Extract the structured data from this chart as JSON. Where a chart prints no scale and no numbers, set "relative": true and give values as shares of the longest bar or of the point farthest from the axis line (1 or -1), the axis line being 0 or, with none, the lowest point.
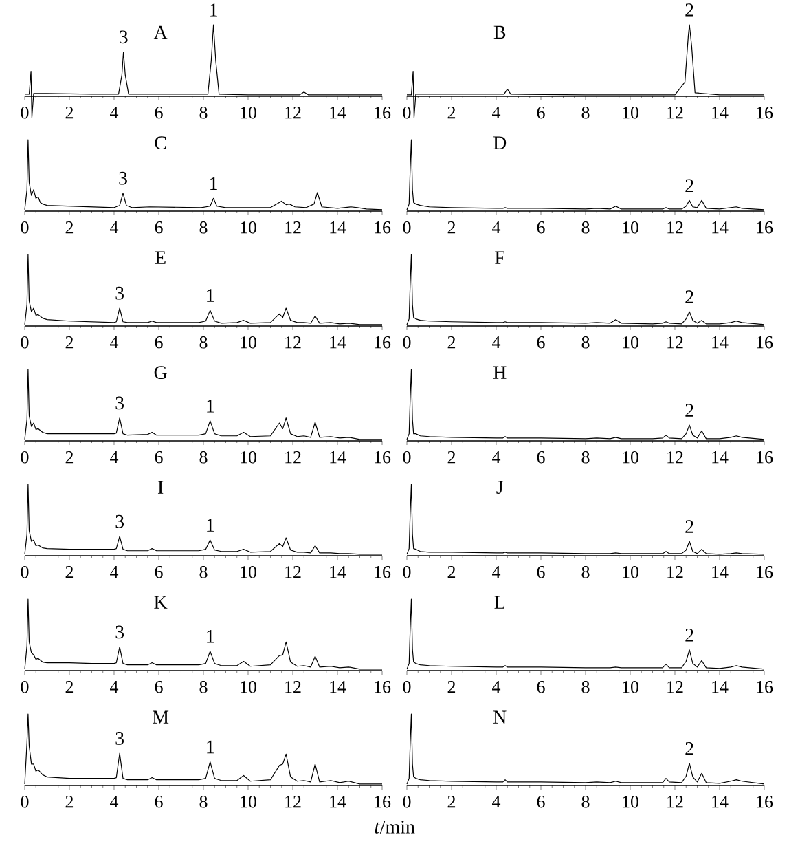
{
  "chart_data": [
    {
      "type": "line",
      "relative": true,
      "title": "A",
      "color": "#000000",
      "xlim": [
        0,
        16
      ],
      "xticks": [
        0,
        2,
        4,
        6,
        8,
        10,
        12,
        14,
        16
      ],
      "x": [
        0,
        0.2,
        0.28,
        0.32,
        0.4,
        1,
        3,
        4.2,
        4.35,
        4.42,
        4.5,
        4.65,
        6,
        8.2,
        8.35,
        8.45,
        8.55,
        8.7,
        10,
        12.3,
        12.5,
        12.7,
        14,
        16
      ],
      "values": [
        0.03,
        0.03,
        0.35,
        -0.3,
        0.04,
        0.04,
        0.03,
        0.03,
        0.3,
        0.62,
        0.3,
        0.03,
        0.03,
        0.03,
        0.5,
        1,
        0.5,
        0.03,
        0.02,
        0.02,
        0.06,
        0.02,
        0.02,
        0.02
      ],
      "annotations": [
        {
          "text": "3",
          "x": 4.42,
          "y": 0.62
        },
        {
          "text": "1",
          "x": 8.45,
          "y": 1
        }
      ]
    },
    {
      "type": "line",
      "relative": true,
      "title": "B",
      "color": "#000000",
      "xlim": [
        0,
        16
      ],
      "xticks": [
        0,
        2,
        4,
        6,
        8,
        10,
        12,
        14,
        16
      ],
      "x": [
        0,
        0.2,
        0.28,
        0.32,
        0.4,
        3,
        4.35,
        4.5,
        4.65,
        8,
        12,
        12.45,
        12.6,
        12.65,
        12.75,
        12.9,
        14,
        16
      ],
      "values": [
        0.02,
        0.02,
        0.35,
        -0.3,
        0.03,
        0.03,
        0.03,
        0.1,
        0.03,
        0.02,
        0.02,
        0.2,
        0.85,
        1,
        0.7,
        0.05,
        0.02,
        0.02
      ],
      "annotations": [
        {
          "text": "2",
          "x": 12.65,
          "y": 1
        }
      ]
    },
    {
      "type": "line",
      "relative": true,
      "title": "C",
      "color": "#000000",
      "xlim": [
        0,
        16
      ],
      "xticks": [
        0,
        2,
        4,
        6,
        8,
        10,
        12,
        14,
        16
      ],
      "x": [
        0,
        0.1,
        0.15,
        0.2,
        0.3,
        0.4,
        0.5,
        0.6,
        0.7,
        0.8,
        1,
        2,
        3,
        4,
        4.25,
        4.4,
        4.55,
        4.8,
        5.6,
        7.9,
        8.3,
        8.45,
        8.6,
        9,
        9.4,
        11,
        11.5,
        11.7,
        11.85,
        12.1,
        12.6,
        12.95,
        13.1,
        13.3,
        14,
        14.6,
        14.9,
        15.3,
        16
      ],
      "values": [
        0.02,
        0.3,
        1,
        0.4,
        0.22,
        0.3,
        0.18,
        0.2,
        0.12,
        0.1,
        0.08,
        0.07,
        0.06,
        0.05,
        0.08,
        0.25,
        0.08,
        0.05,
        0.06,
        0.05,
        0.07,
        0.18,
        0.07,
        0.05,
        0.05,
        0.05,
        0.14,
        0.09,
        0.1,
        0.06,
        0.05,
        0.1,
        0.26,
        0.06,
        0.04,
        0.06,
        0.05,
        0.03,
        0.02
      ],
      "annotations": [
        {
          "text": "3",
          "x": 4.4,
          "y": 0.25
        },
        {
          "text": "1",
          "x": 8.45,
          "y": 0.18
        }
      ]
    },
    {
      "type": "line",
      "relative": true,
      "title": "D",
      "color": "#000000",
      "xlim": [
        0,
        16
      ],
      "xticks": [
        0,
        2,
        4,
        6,
        8,
        10,
        12,
        14,
        16
      ],
      "x": [
        0,
        0.1,
        0.15,
        0.2,
        0.25,
        0.3,
        0.4,
        0.6,
        1,
        2,
        4,
        4.3,
        4.4,
        4.5,
        6,
        8,
        8.5,
        9.1,
        9.35,
        9.6,
        11,
        11.45,
        11.6,
        11.75,
        12.3,
        12.5,
        12.65,
        12.8,
        13.0,
        13.2,
        13.4,
        14,
        14.5,
        14.75,
        15,
        16
      ],
      "values": [
        0.02,
        0.1,
        0.6,
        1,
        0.3,
        0.12,
        0.1,
        0.08,
        0.06,
        0.05,
        0.04,
        0.04,
        0.05,
        0.04,
        0.04,
        0.03,
        0.04,
        0.03,
        0.07,
        0.03,
        0.03,
        0.03,
        0.05,
        0.03,
        0.03,
        0.07,
        0.15,
        0.06,
        0.05,
        0.15,
        0.04,
        0.03,
        0.05,
        0.06,
        0.04,
        0.02
      ],
      "annotations": [
        {
          "text": "2",
          "x": 12.65,
          "y": 0.15
        }
      ]
    },
    {
      "type": "line",
      "relative": true,
      "title": "E",
      "color": "#000000",
      "xlim": [
        0,
        16
      ],
      "xticks": [
        0,
        2,
        4,
        6,
        8,
        10,
        12,
        14,
        16
      ],
      "x": [
        0,
        0.1,
        0.15,
        0.2,
        0.3,
        0.4,
        0.5,
        0.6,
        0.8,
        1,
        2,
        3,
        4,
        4.1,
        4.25,
        4.4,
        4.6,
        5.5,
        5.7,
        5.9,
        7.8,
        8.1,
        8.3,
        8.5,
        8.8,
        9.5,
        9.8,
        10.1,
        11,
        11.4,
        11.55,
        11.7,
        11.9,
        12.2,
        12.5,
        12.8,
        13.0,
        13.2,
        13.7,
        14.1,
        14.5,
        15,
        16
      ],
      "values": [
        0.02,
        0.3,
        1,
        0.35,
        0.2,
        0.25,
        0.15,
        0.16,
        0.11,
        0.09,
        0.07,
        0.06,
        0.05,
        0.06,
        0.25,
        0.06,
        0.05,
        0.05,
        0.07,
        0.05,
        0.05,
        0.07,
        0.22,
        0.07,
        0.04,
        0.05,
        0.08,
        0.04,
        0.05,
        0.17,
        0.12,
        0.25,
        0.08,
        0.05,
        0.05,
        0.04,
        0.14,
        0.04,
        0.05,
        0.03,
        0.04,
        0.02,
        0.02
      ],
      "annotations": [
        {
          "text": "3",
          "x": 4.25,
          "y": 0.25
        },
        {
          "text": "1",
          "x": 8.3,
          "y": 0.22
        }
      ]
    },
    {
      "type": "line",
      "relative": true,
      "title": "F",
      "color": "#000000",
      "xlim": [
        0,
        16
      ],
      "xticks": [
        0,
        2,
        4,
        6,
        8,
        10,
        12,
        14,
        16
      ],
      "x": [
        0,
        0.1,
        0.15,
        0.2,
        0.25,
        0.3,
        0.4,
        0.6,
        1,
        2,
        4,
        4.3,
        4.4,
        4.5,
        6,
        8,
        8.5,
        9.1,
        9.35,
        9.6,
        11,
        11.45,
        11.6,
        11.75,
        12.3,
        12.5,
        12.65,
        12.8,
        13.0,
        13.2,
        13.4,
        14,
        14.5,
        14.75,
        15,
        16
      ],
      "values": [
        0.02,
        0.1,
        0.6,
        1,
        0.3,
        0.12,
        0.1,
        0.08,
        0.07,
        0.06,
        0.05,
        0.05,
        0.06,
        0.05,
        0.05,
        0.04,
        0.05,
        0.04,
        0.09,
        0.04,
        0.03,
        0.04,
        0.06,
        0.04,
        0.03,
        0.1,
        0.2,
        0.08,
        0.04,
        0.08,
        0.03,
        0.03,
        0.05,
        0.07,
        0.05,
        0.02
      ],
      "annotations": [
        {
          "text": "2",
          "x": 12.65,
          "y": 0.2
        }
      ]
    },
    {
      "type": "line",
      "relative": true,
      "title": "G",
      "color": "#000000",
      "xlim": [
        0,
        16
      ],
      "xticks": [
        0,
        2,
        4,
        6,
        8,
        10,
        12,
        14,
        16
      ],
      "x": [
        0,
        0.1,
        0.15,
        0.2,
        0.3,
        0.4,
        0.5,
        0.6,
        0.8,
        1,
        2,
        3,
        4,
        4.1,
        4.25,
        4.4,
        4.6,
        5.5,
        5.7,
        5.9,
        7.8,
        8.1,
        8.3,
        8.5,
        8.8,
        9.5,
        9.8,
        10.1,
        11,
        11.4,
        11.55,
        11.7,
        11.9,
        12.2,
        12.5,
        12.8,
        13.0,
        13.2,
        13.7,
        14.1,
        14.5,
        15,
        16
      ],
      "values": [
        0.02,
        0.3,
        1,
        0.35,
        0.2,
        0.25,
        0.16,
        0.17,
        0.12,
        0.1,
        0.1,
        0.1,
        0.1,
        0.11,
        0.32,
        0.1,
        0.08,
        0.09,
        0.12,
        0.08,
        0.08,
        0.1,
        0.28,
        0.1,
        0.07,
        0.07,
        0.12,
        0.06,
        0.07,
        0.25,
        0.17,
        0.32,
        0.1,
        0.06,
        0.07,
        0.05,
        0.26,
        0.05,
        0.06,
        0.04,
        0.05,
        0.02,
        0.02
      ],
      "annotations": [
        {
          "text": "3",
          "x": 4.25,
          "y": 0.32
        },
        {
          "text": "1",
          "x": 8.3,
          "y": 0.28
        }
      ]
    },
    {
      "type": "line",
      "relative": true,
      "title": "H",
      "color": "#000000",
      "xlim": [
        0,
        16
      ],
      "xticks": [
        0,
        2,
        4,
        6,
        8,
        10,
        12,
        14,
        16
      ],
      "x": [
        0,
        0.1,
        0.15,
        0.2,
        0.25,
        0.3,
        0.4,
        0.6,
        1,
        2,
        4,
        4.3,
        4.4,
        4.5,
        6,
        8,
        8.5,
        9.1,
        9.35,
        9.6,
        11,
        11.45,
        11.6,
        11.75,
        12.3,
        12.5,
        12.65,
        12.8,
        13.0,
        13.2,
        13.4,
        14,
        14.5,
        14.75,
        15,
        16
      ],
      "values": [
        0.02,
        0.1,
        0.6,
        1,
        0.3,
        0.1,
        0.1,
        0.07,
        0.06,
        0.05,
        0.04,
        0.04,
        0.06,
        0.04,
        0.04,
        0.03,
        0.04,
        0.03,
        0.05,
        0.03,
        0.03,
        0.04,
        0.08,
        0.04,
        0.03,
        0.1,
        0.22,
        0.08,
        0.04,
        0.14,
        0.03,
        0.03,
        0.05,
        0.07,
        0.05,
        0.02
      ],
      "annotations": [
        {
          "text": "2",
          "x": 12.65,
          "y": 0.22
        }
      ]
    },
    {
      "type": "line",
      "relative": true,
      "title": "I",
      "color": "#000000",
      "xlim": [
        0,
        16
      ],
      "xticks": [
        0,
        2,
        4,
        6,
        8,
        10,
        12,
        14,
        16
      ],
      "x": [
        0,
        0.1,
        0.15,
        0.2,
        0.3,
        0.4,
        0.5,
        0.6,
        0.8,
        1,
        2,
        3,
        4,
        4.1,
        4.25,
        4.4,
        4.6,
        5.5,
        5.7,
        5.9,
        7.8,
        8.1,
        8.3,
        8.5,
        8.8,
        9.5,
        9.8,
        10.1,
        11,
        11.4,
        11.55,
        11.7,
        11.9,
        12.2,
        12.5,
        12.8,
        13.0,
        13.2,
        13.7,
        14.1,
        14.5,
        15,
        16
      ],
      "values": [
        0.02,
        0.3,
        1,
        0.35,
        0.2,
        0.22,
        0.14,
        0.15,
        0.11,
        0.1,
        0.09,
        0.09,
        0.09,
        0.1,
        0.27,
        0.09,
        0.07,
        0.07,
        0.1,
        0.07,
        0.07,
        0.09,
        0.22,
        0.08,
        0.06,
        0.06,
        0.09,
        0.05,
        0.06,
        0.17,
        0.13,
        0.25,
        0.08,
        0.05,
        0.05,
        0.04,
        0.14,
        0.04,
        0.04,
        0.03,
        0.03,
        0.02,
        0.02
      ],
      "annotations": [
        {
          "text": "3",
          "x": 4.25,
          "y": 0.27
        },
        {
          "text": "1",
          "x": 8.3,
          "y": 0.22
        }
      ]
    },
    {
      "type": "line",
      "relative": true,
      "title": "J",
      "color": "#000000",
      "xlim": [
        0,
        16
      ],
      "xticks": [
        0,
        2,
        4,
        6,
        8,
        10,
        12,
        14,
        16
      ],
      "x": [
        0,
        0.1,
        0.15,
        0.2,
        0.25,
        0.3,
        0.4,
        0.6,
        1,
        2,
        4,
        4.3,
        4.4,
        4.5,
        6,
        8,
        8.5,
        9.1,
        9.35,
        9.6,
        11,
        11.45,
        11.6,
        11.75,
        12.3,
        12.5,
        12.65,
        12.8,
        13.0,
        13.2,
        13.4,
        14,
        14.5,
        14.75,
        15,
        16
      ],
      "values": [
        0.02,
        0.1,
        0.6,
        1,
        0.3,
        0.1,
        0.09,
        0.06,
        0.05,
        0.05,
        0.04,
        0.04,
        0.05,
        0.04,
        0.04,
        0.03,
        0.03,
        0.03,
        0.04,
        0.03,
        0.03,
        0.03,
        0.06,
        0.03,
        0.03,
        0.08,
        0.2,
        0.06,
        0.03,
        0.09,
        0.03,
        0.02,
        0.03,
        0.04,
        0.03,
        0.02
      ],
      "annotations": [
        {
          "text": "2",
          "x": 12.65,
          "y": 0.2
        }
      ]
    },
    {
      "type": "line",
      "relative": true,
      "title": "K",
      "color": "#000000",
      "xlim": [
        0,
        16
      ],
      "xticks": [
        0,
        2,
        4,
        6,
        8,
        10,
        12,
        14,
        16
      ],
      "x": [
        0,
        0.1,
        0.15,
        0.2,
        0.3,
        0.4,
        0.5,
        0.6,
        0.8,
        1,
        2,
        3,
        4,
        4.1,
        4.25,
        4.4,
        4.6,
        5.5,
        5.7,
        5.9,
        7.8,
        8.1,
        8.3,
        8.5,
        8.8,
        9.5,
        9.8,
        10.1,
        11,
        11.4,
        11.55,
        11.7,
        11.9,
        12.2,
        12.5,
        12.8,
        13.0,
        13.2,
        13.7,
        14.1,
        14.5,
        15,
        16
      ],
      "values": [
        0.02,
        0.35,
        1,
        0.4,
        0.25,
        0.22,
        0.16,
        0.17,
        0.12,
        0.11,
        0.11,
        0.1,
        0.1,
        0.11,
        0.33,
        0.1,
        0.08,
        0.08,
        0.11,
        0.08,
        0.08,
        0.1,
        0.27,
        0.1,
        0.07,
        0.07,
        0.13,
        0.06,
        0.08,
        0.21,
        0.22,
        0.4,
        0.12,
        0.06,
        0.07,
        0.05,
        0.2,
        0.05,
        0.06,
        0.04,
        0.05,
        0.02,
        0.02
      ],
      "annotations": [
        {
          "text": "3",
          "x": 4.25,
          "y": 0.33
        },
        {
          "text": "1",
          "x": 8.3,
          "y": 0.27
        }
      ]
    },
    {
      "type": "line",
      "relative": true,
      "title": "L",
      "color": "#000000",
      "xlim": [
        0,
        16
      ],
      "xticks": [
        0,
        2,
        4,
        6,
        8,
        10,
        12,
        14,
        16
      ],
      "x": [
        0,
        0.1,
        0.15,
        0.2,
        0.25,
        0.3,
        0.4,
        0.6,
        1,
        2,
        4,
        4.3,
        4.4,
        4.5,
        6,
        8,
        8.5,
        9.1,
        9.35,
        9.6,
        11,
        11.45,
        11.6,
        11.75,
        12.3,
        12.5,
        12.65,
        12.8,
        13.0,
        13.2,
        13.4,
        14,
        14.5,
        14.75,
        15,
        16
      ],
      "values": [
        0.02,
        0.1,
        0.6,
        1,
        0.3,
        0.12,
        0.1,
        0.08,
        0.07,
        0.06,
        0.05,
        0.05,
        0.07,
        0.05,
        0.05,
        0.04,
        0.04,
        0.04,
        0.05,
        0.04,
        0.04,
        0.04,
        0.09,
        0.04,
        0.04,
        0.13,
        0.29,
        0.1,
        0.05,
        0.14,
        0.04,
        0.03,
        0.05,
        0.07,
        0.05,
        0.02
      ],
      "annotations": [
        {
          "text": "2",
          "x": 12.65,
          "y": 0.29
        }
      ]
    },
    {
      "type": "line",
      "relative": true,
      "title": "M",
      "xlabel": "*t*/min",
      "color": "#000000",
      "xlim": [
        0,
        16
      ],
      "xticks": [
        0,
        2,
        4,
        6,
        8,
        10,
        12,
        14,
        16
      ],
      "x": [
        0,
        0.1,
        0.15,
        0.2,
        0.3,
        0.4,
        0.5,
        0.6,
        0.8,
        1,
        2,
        3,
        4,
        4.1,
        4.25,
        4.4,
        4.6,
        5.5,
        5.7,
        5.9,
        7.8,
        8.1,
        8.3,
        8.5,
        8.8,
        9.5,
        9.8,
        10.1,
        11,
        11.4,
        11.55,
        11.7,
        11.9,
        12.2,
        12.5,
        12.8,
        13.0,
        13.2,
        13.7,
        14.1,
        14.5,
        15,
        16
      ],
      "values": [
        0.02,
        0.6,
        1,
        0.55,
        0.3,
        0.3,
        0.2,
        0.22,
        0.15,
        0.12,
        0.1,
        0.1,
        0.1,
        0.11,
        0.45,
        0.1,
        0.08,
        0.08,
        0.11,
        0.08,
        0.08,
        0.1,
        0.33,
        0.1,
        0.07,
        0.07,
        0.14,
        0.06,
        0.08,
        0.28,
        0.3,
        0.44,
        0.12,
        0.06,
        0.07,
        0.05,
        0.3,
        0.05,
        0.07,
        0.04,
        0.06,
        0.02,
        0.02
      ],
      "annotations": [
        {
          "text": "3",
          "x": 4.25,
          "y": 0.45
        },
        {
          "text": "1",
          "x": 8.3,
          "y": 0.33
        }
      ]
    },
    {
      "type": "line",
      "relative": true,
      "title": "N",
      "color": "#000000",
      "xlim": [
        0,
        16
      ],
      "xticks": [
        0,
        2,
        4,
        6,
        8,
        10,
        12,
        14,
        16
      ],
      "x": [
        0,
        0.1,
        0.15,
        0.2,
        0.25,
        0.3,
        0.4,
        0.6,
        1,
        2,
        4,
        4.3,
        4.4,
        4.5,
        6,
        8,
        8.5,
        9.1,
        9.35,
        9.6,
        11,
        11.45,
        11.6,
        11.75,
        12.3,
        12.5,
        12.65,
        12.8,
        13.0,
        13.2,
        13.4,
        14,
        14.5,
        14.75,
        15,
        16
      ],
      "values": [
        0.02,
        0.1,
        0.6,
        1,
        0.3,
        0.12,
        0.1,
        0.08,
        0.07,
        0.06,
        0.05,
        0.05,
        0.08,
        0.05,
        0.05,
        0.04,
        0.05,
        0.04,
        0.06,
        0.04,
        0.04,
        0.04,
        0.1,
        0.05,
        0.04,
        0.13,
        0.31,
        0.12,
        0.05,
        0.17,
        0.04,
        0.03,
        0.06,
        0.08,
        0.06,
        0.02
      ],
      "annotations": [
        {
          "text": "2",
          "x": 12.65,
          "y": 0.31
        }
      ]
    }
  ]
}
